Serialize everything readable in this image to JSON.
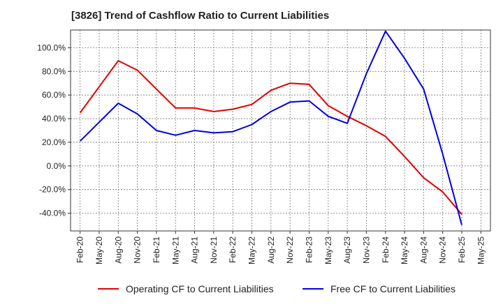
{
  "chart_data": {
    "type": "line",
    "title": "[3826]  Trend of Cashflow Ratio to Current Liabilities",
    "xlabel": "",
    "ylabel": "",
    "categories": [
      "Feb-20",
      "May-20",
      "Aug-20",
      "Nov-20",
      "Feb-21",
      "May-21",
      "Aug-21",
      "Nov-21",
      "Feb-22",
      "May-22",
      "Aug-22",
      "Nov-22",
      "Feb-23",
      "May-23",
      "Aug-23",
      "Nov-23",
      "Feb-24",
      "May-24",
      "Aug-24",
      "Nov-24",
      "Feb-25",
      "May-25"
    ],
    "ylim": [
      -55,
      115
    ],
    "yticks": [
      100,
      80,
      60,
      40,
      20,
      0,
      -20,
      -40
    ],
    "ytick_labels": [
      "100.0%",
      "80.0%",
      "60.0%",
      "40.0%",
      "20.0%",
      "0.0%",
      "-20.0%",
      "-40.0%"
    ],
    "grid": true,
    "legend_position": "bottom",
    "series": [
      {
        "name": "Operating CF to Current Liabilities",
        "color": "#e00000",
        "values": [
          45,
          67,
          89,
          81,
          65,
          49,
          49,
          46,
          48,
          52,
          64,
          70,
          69,
          51,
          42,
          34,
          25,
          8,
          -10,
          -22,
          -41,
          null
        ]
      },
      {
        "name": "Free CF to Current Liabilities",
        "color": "#0000e0",
        "values": [
          21,
          37,
          53,
          44,
          30,
          26,
          30,
          28,
          29,
          35,
          46,
          54,
          55,
          42,
          36,
          78,
          114,
          91,
          65,
          10,
          -50,
          null
        ]
      }
    ]
  }
}
